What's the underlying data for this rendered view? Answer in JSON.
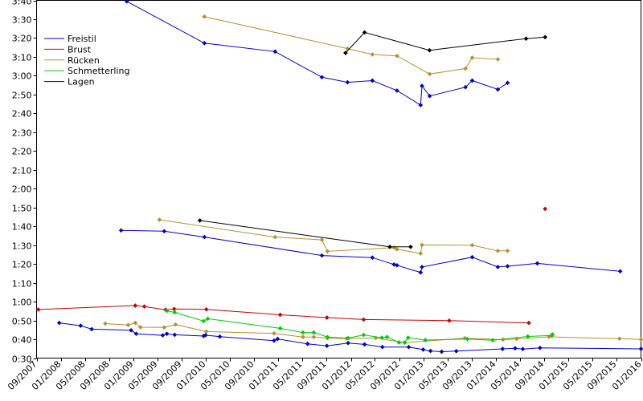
{
  "chart_data": {
    "type": "line",
    "ylim": [
      "0:30",
      "3:40"
    ],
    "y_ticks": [
      "0:30",
      "0:40",
      "0:50",
      "1:00",
      "1:10",
      "1:20",
      "1:30",
      "1:40",
      "1:50",
      "2:00",
      "2:10",
      "2:20",
      "2:30",
      "2:40",
      "2:50",
      "3:00",
      "3:10",
      "3:20",
      "3:30",
      "3:40"
    ],
    "x_range": [
      "2007-09",
      "2016-01"
    ],
    "x_ticks": [
      "09/2007",
      "01/2008",
      "05/2008",
      "09/2008",
      "01/2009",
      "05/2009",
      "09/2009",
      "01/2010",
      "05/2010",
      "09/2010",
      "01/2011",
      "05/2011",
      "09/2011",
      "01/2012",
      "05/2012",
      "09/2012",
      "01/2013",
      "05/2013",
      "09/2013",
      "01/2014",
      "05/2014",
      "09/2014",
      "01/2015",
      "05/2015",
      "09/2015",
      "01/2016"
    ],
    "legend": {
      "placement": "top-left"
    },
    "grid": false,
    "series": [
      {
        "name": "Freistil",
        "color": "#0000cc",
        "lines": [
          [
            [
              "2008-11-28",
              "3:39.5"
            ],
            [
              "2009-12-24",
              "3:17.3"
            ],
            [
              "2010-12-15",
              "3:12.8"
            ],
            [
              "2011-08-08",
              "2:59.2"
            ],
            [
              "2011-12-15",
              "2:56.5"
            ],
            [
              "2012-04-18",
              "2:57.4"
            ],
            [
              "2012-08-20",
              "2:52.1"
            ],
            [
              "2012-12-17",
              "2:44.4"
            ],
            [
              "2012-12-24",
              "2:54.6"
            ],
            [
              "2013-02-01",
              "2:49.2"
            ],
            [
              "2013-07-31",
              "2:53.9"
            ],
            [
              "2013-09-03",
              "2:57.4"
            ],
            [
              "2014-01-10",
              "2:52.7"
            ],
            [
              "2014-02-28",
              "2:56.2"
            ]
          ],
          [
            [
              "2008-10-31",
              "1:37.8"
            ],
            [
              "2009-06-05",
              "1:37.4"
            ],
            [
              "2009-12-24",
              "1:34.3"
            ],
            [
              "2011-08-08",
              "1:24.5"
            ],
            [
              "2012-04-18",
              "1:23.4"
            ],
            [
              "2012-08-05",
              "1:19.7"
            ],
            [
              "2012-08-20",
              "1:19.3"
            ],
            [
              "2012-12-17",
              "1:15.5"
            ],
            [
              "2012-12-24",
              "1:18.4"
            ],
            [
              "2013-09-03",
              "1:23.6"
            ],
            [
              "2014-01-10",
              "1:18.4"
            ],
            [
              "2014-02-28",
              "1:18.8"
            ],
            [
              "2014-07-28",
              "1:20.3"
            ],
            [
              "2015-09-18",
              "1:16.1"
            ]
          ],
          [
            [
              "2007-12-24",
              "0:48.7"
            ],
            [
              "2008-04-10",
              "0:47.2"
            ],
            [
              "2008-06-05",
              "0:45.4"
            ],
            [
              "2008-12-20",
              "0:44.8"
            ],
            [
              "2009-01-15",
              "0:42.9"
            ],
            [
              "2009-05-28",
              "0:42.1"
            ],
            [
              "2009-06-18",
              "0:42.9"
            ],
            [
              "2009-07-28",
              "0:42.4"
            ],
            [
              "2009-12-20",
              "0:41.7"
            ],
            [
              "2009-12-30",
              "0:42.2"
            ],
            [
              "2010-03-12",
              "0:41.4"
            ],
            [
              "2010-12-10",
              "0:39.3"
            ],
            [
              "2010-12-28",
              "0:40.2"
            ],
            [
              "2011-05-28",
              "0:37.6"
            ],
            [
              "2011-09-02",
              "0:36.5"
            ],
            [
              "2011-12-18",
              "0:38.0"
            ],
            [
              "2012-03-10",
              "0:37.3"
            ],
            [
              "2012-06-08",
              "0:35.9"
            ],
            [
              "2012-10-18",
              "0:35.9"
            ],
            [
              "2012-12-30",
              "0:34.5"
            ],
            [
              "2013-02-05",
              "0:33.8"
            ],
            [
              "2013-04-02",
              "0:33.4"
            ],
            [
              "2013-06-15",
              "0:33.7"
            ],
            [
              "2014-02-03",
              "0:34.9"
            ],
            [
              "2014-04-07",
              "0:35.2"
            ],
            [
              "2014-05-16",
              "0:34.8"
            ],
            [
              "2014-08-10",
              "0:35.4"
            ],
            [
              "2016-01-01",
              "0:34.9"
            ]
          ]
        ]
      },
      {
        "name": "Brust",
        "color": "#cc0000",
        "lines": [
          [
            [
              "2007-09-10",
              "0:55.8"
            ],
            [
              "2009-01-10",
              "0:57.9"
            ],
            [
              "2009-02-25",
              "0:57.4"
            ],
            [
              "2009-06-12",
              "0:55.7"
            ],
            [
              "2009-07-25",
              "0:56.1"
            ],
            [
              "2010-01-03",
              "0:55.9"
            ],
            [
              "2011-01-10",
              "0:53.0"
            ],
            [
              "2011-09-02",
              "0:51.5"
            ],
            [
              "2012-03-05",
              "0:50.5"
            ],
            [
              "2013-05-10",
              "0:49.9"
            ],
            [
              "2014-06-15",
              "0:48.7"
            ]
          ],
          [
            [
              "2014-09-05",
              "1:49.3"
            ]
          ]
        ]
      },
      {
        "name": "Rücken",
        "color": "#b89030",
        "lines": [
          [
            [
              "2009-12-24",
              "3:31.4"
            ],
            [
              "2011-12-15",
              "3:14.4"
            ],
            [
              "2012-04-18",
              "3:11.3"
            ],
            [
              "2012-08-20",
              "3:10.5"
            ],
            [
              "2013-02-01",
              "3:00.9"
            ],
            [
              "2013-07-31",
              "3:03.8"
            ],
            [
              "2013-09-03",
              "3:09.6"
            ],
            [
              "2014-01-10",
              "3:08.7"
            ]
          ],
          [
            [
              "2009-05-12",
              "1:43.5"
            ],
            [
              "2010-12-15",
              "1:34.3"
            ],
            [
              "2011-08-08",
              "1:32.8"
            ],
            [
              "2011-09-05",
              "1:26.7"
            ],
            [
              "2012-08-05",
              "1:28.7"
            ],
            [
              "2012-08-20",
              "1:27.8"
            ],
            [
              "2012-12-17",
              "1:25.6"
            ],
            [
              "2012-12-24",
              "1:30.1"
            ],
            [
              "2013-09-03",
              "1:30.0"
            ],
            [
              "2014-01-10",
              "1:27.0"
            ],
            [
              "2014-02-28",
              "1:27.0"
            ]
          ],
          [
            [
              "2008-08-12",
              "0:48.3"
            ],
            [
              "2008-12-05",
              "0:47.6"
            ],
            [
              "2009-01-10",
              "0:48.7"
            ],
            [
              "2009-02-05",
              "0:46.4"
            ],
            [
              "2009-06-05",
              "0:46.3"
            ],
            [
              "2009-08-01",
              "0:47.8"
            ],
            [
              "2010-01-03",
              "0:44.1"
            ],
            [
              "2010-12-10",
              "0:43.1"
            ],
            [
              "2011-05-05",
              "0:41.2"
            ],
            [
              "2011-06-28",
              "0:41.2"
            ],
            [
              "2011-09-05",
              "0:40.6"
            ],
            [
              "2011-12-10",
              "0:40.4"
            ],
            [
              "2012-05-05",
              "0:40.7"
            ],
            [
              "2012-09-28",
              "0:38.2"
            ],
            [
              "2013-07-28",
              "0:40.6"
            ],
            [
              "2014-02-05",
              "0:39.8"
            ],
            [
              "2014-04-15",
              "0:40.2"
            ],
            [
              "2014-09-25",
              "0:41.3"
            ],
            [
              "2015-09-15",
              "0:40.3"
            ],
            [
              "2016-01-01",
              "0:39.9"
            ]
          ]
        ]
      },
      {
        "name": "Schmetterling",
        "color": "#00cc00",
        "lines": [
          [
            [
              "2009-06-18",
              "0:55.1"
            ],
            [
              "2009-07-28",
              "0:54.3"
            ],
            [
              "2009-12-20",
              "0:49.7"
            ],
            [
              "2010-01-10",
              "0:50.9"
            ],
            [
              "2011-01-10",
              "0:45.8"
            ],
            [
              "2011-05-05",
              "0:43.6"
            ],
            [
              "2011-06-28",
              "0:43.6"
            ],
            [
              "2011-09-05",
              "0:41.2"
            ],
            [
              "2011-12-18",
              "0:40.6"
            ],
            [
              "2012-03-05",
              "0:42.3"
            ],
            [
              "2012-06-05",
              "0:40.8"
            ],
            [
              "2012-07-01",
              "0:41.2"
            ],
            [
              "2012-08-30",
              "0:38.3"
            ],
            [
              "2012-09-28",
              "0:38.3"
            ],
            [
              "2012-10-15",
              "0:40.8"
            ],
            [
              "2013-01-10",
              "0:39.6"
            ],
            [
              "2013-08-10",
              "0:40.1"
            ],
            [
              "2013-12-15",
              "0:39.5"
            ],
            [
              "2014-06-10",
              "0:41.5"
            ],
            [
              "2014-10-10",
              "0:42.0"
            ],
            [
              "2014-10-12",
              "0:42.6"
            ]
          ]
        ]
      },
      {
        "name": "Lagen",
        "color": "#000000",
        "lines": [
          [
            [
              "2011-12-05",
              "3:12.1"
            ],
            [
              "2012-03-10",
              "3:23.0"
            ],
            [
              "2013-01-31",
              "3:13.5"
            ],
            [
              "2014-06-01",
              "3:19.7"
            ],
            [
              "2014-09-05",
              "3:20.5"
            ]
          ],
          [
            [
              "2009-12-01",
              "1:43.1"
            ],
            [
              "2012-07-15",
              "1:29.1"
            ],
            [
              "2012-10-28",
              "1:29.1"
            ]
          ]
        ]
      }
    ]
  }
}
